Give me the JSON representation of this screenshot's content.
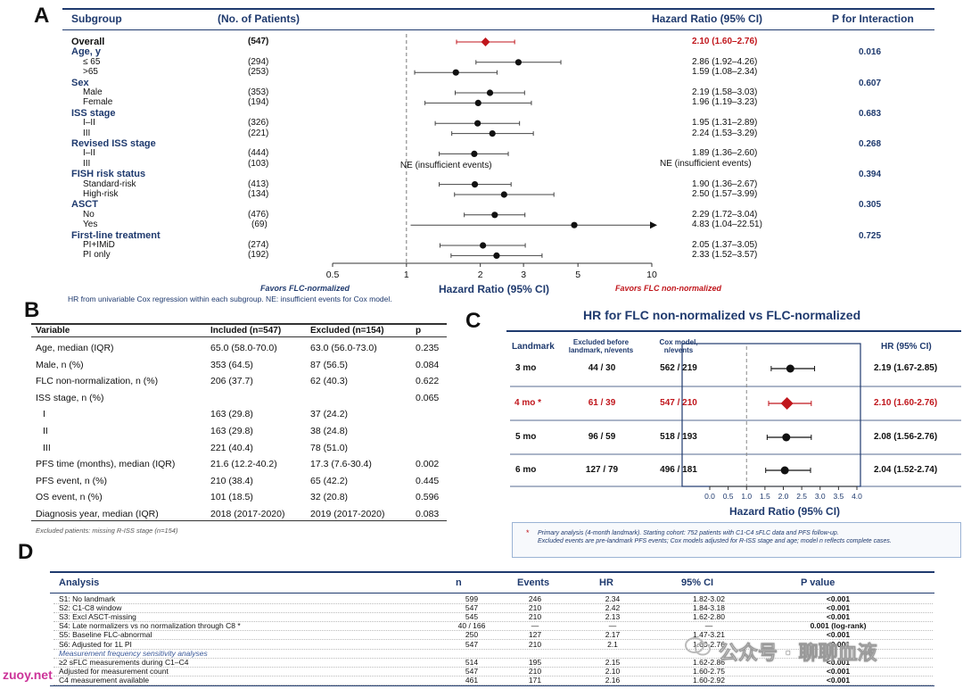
{
  "panelA": {
    "letter": "A",
    "headers": {
      "subgroup": "Subgroup",
      "n": "(No. of Patients)",
      "hr": "Hazard Ratio (95% CI)",
      "p": "P for Interaction"
    },
    "rows": [
      {
        "label": "Overall",
        "kind": "overall",
        "n": "(547)",
        "hr": 2.1,
        "lo": 1.6,
        "hi": 2.76,
        "text": "2.10 (1.60–2.76)"
      },
      {
        "label": "Age, y",
        "kind": "group",
        "p": "0.016"
      },
      {
        "label": "≤ 65",
        "kind": "sub",
        "n": "(294)",
        "hr": 2.86,
        "lo": 1.92,
        "hi": 4.26,
        "text": "2.86 (1.92–4.26)"
      },
      {
        "label": ">65",
        "kind": "sub",
        "n": "(253)",
        "hr": 1.59,
        "lo": 1.08,
        "hi": 2.34,
        "text": "1.59 (1.08–2.34)"
      },
      {
        "label": "Sex",
        "kind": "group",
        "p": "0.607"
      },
      {
        "label": "Male",
        "kind": "sub",
        "n": "(353)",
        "hr": 2.19,
        "lo": 1.58,
        "hi": 3.03,
        "text": "2.19 (1.58–3.03)"
      },
      {
        "label": "Female",
        "kind": "sub",
        "n": "(194)",
        "hr": 1.96,
        "lo": 1.19,
        "hi": 3.23,
        "text": "1.96 (1.19–3.23)"
      },
      {
        "label": "ISS stage",
        "kind": "group",
        "p": "0.683"
      },
      {
        "label": "I–II",
        "kind": "sub",
        "n": "(326)",
        "hr": 1.95,
        "lo": 1.31,
        "hi": 2.89,
        "text": "1.95 (1.31–2.89)"
      },
      {
        "label": "III",
        "kind": "sub",
        "n": "(221)",
        "hr": 2.24,
        "lo": 1.53,
        "hi": 3.29,
        "text": "2.24 (1.53–3.29)"
      },
      {
        "label": "Revised ISS stage",
        "kind": "group",
        "p": "0.268"
      },
      {
        "label": "I–II",
        "kind": "sub",
        "n": "(444)",
        "hr": 1.89,
        "lo": 1.36,
        "hi": 2.6,
        "text": "1.89 (1.36–2.60)"
      },
      {
        "label": "III",
        "kind": "sub",
        "n": "(103)",
        "na": "NE (insufficient events)",
        "text": "NE (insufficient events)"
      },
      {
        "label": "FISH risk status",
        "kind": "group",
        "p": "0.394"
      },
      {
        "label": "Standard-risk",
        "kind": "sub",
        "n": "(413)",
        "hr": 1.9,
        "lo": 1.36,
        "hi": 2.67,
        "text": "1.90 (1.36–2.67)"
      },
      {
        "label": "High-risk",
        "kind": "sub",
        "n": "(134)",
        "hr": 2.5,
        "lo": 1.57,
        "hi": 3.99,
        "text": "2.50 (1.57–3.99)"
      },
      {
        "label": "ASCT",
        "kind": "group",
        "p": "0.305"
      },
      {
        "label": "No",
        "kind": "sub",
        "n": "(476)",
        "hr": 2.29,
        "lo": 1.72,
        "hi": 3.04,
        "text": "2.29 (1.72–3.04)"
      },
      {
        "label": "Yes",
        "kind": "sub",
        "n": "(69)",
        "hr": 4.83,
        "lo": 1.04,
        "hi": 22.51,
        "text": "4.83 (1.04–22.51)"
      },
      {
        "label": "First-line treatment",
        "kind": "group",
        "p": "0.725"
      },
      {
        "label": "PI+IMiD",
        "kind": "sub",
        "n": "(274)",
        "hr": 2.05,
        "lo": 1.37,
        "hi": 3.05,
        "text": "2.05 (1.37–3.05)"
      },
      {
        "label": "PI only",
        "kind": "sub",
        "n": "(192)",
        "hr": 2.33,
        "lo": 1.52,
        "hi": 3.57,
        "text": "2.33 (1.52–3.57)"
      }
    ],
    "ticks": [
      "0.5",
      "1",
      "2",
      "3",
      "5",
      "10"
    ],
    "xlabel": "Hazard Ratio (95% CI)",
    "favors_left": "Favors FLC-normalized",
    "favors_right": "Favors FLC non-normalized",
    "footnote": "HR from univariable Cox regression within each subgroup. NE: insufficient events for Cox model."
  },
  "panelB": {
    "letter": "B",
    "headers": [
      "Variable",
      "Included (n=547)",
      "Excluded (n=154)",
      "p"
    ],
    "rows": [
      [
        "Age, median (IQR)",
        "65.0 (58.0-70.0)",
        "63.0 (56.0-73.0)",
        "0.235"
      ],
      [
        "Male, n (%)",
        "353 (64.5)",
        "87 (56.5)",
        "0.084"
      ],
      [
        "FLC non-normalization, n (%)",
        "206 (37.7)",
        "62 (40.3)",
        "0.622"
      ],
      [
        "ISS stage, n (%)",
        "",
        "",
        "0.065"
      ],
      [
        "I",
        "163 (29.8)",
        "37 (24.2)",
        ""
      ],
      [
        "II",
        "163 (29.8)",
        "38 (24.8)",
        ""
      ],
      [
        "III",
        "221 (40.4)",
        "78 (51.0)",
        ""
      ],
      [
        "PFS time (months), median (IQR)",
        "21.6 (12.2-40.2)",
        "17.3 (7.6-30.4)",
        "0.002"
      ],
      [
        "PFS event, n (%)",
        "210 (38.4)",
        "65 (42.2)",
        "0.445"
      ],
      [
        "OS event, n (%)",
        "101 (18.5)",
        "32 (20.8)",
        "0.596"
      ],
      [
        "Diagnosis year, median (IQR)",
        "2018 (2017-2020)",
        "2019 (2017-2020)",
        "0.083"
      ]
    ],
    "footnote": "Excluded patients: missing R-ISS stage (n=154)"
  },
  "panelC": {
    "letter": "C",
    "title": "HR for FLC non-normalized vs FLC-normalized",
    "headers": {
      "landmark": "Landmark",
      "excluded": "Excluded before landmark, n/events",
      "cox": "Cox model, n/events",
      "hr": "HR (95% CI)"
    },
    "rows": [
      {
        "landmark": "3 mo",
        "excluded": "44 / 30",
        "cox": "562 / 219",
        "hr": 2.19,
        "lo": 1.67,
        "hi": 2.85,
        "text": "2.19 (1.67-2.85)",
        "primary": false
      },
      {
        "landmark": "4 mo *",
        "excluded": "61 / 39",
        "cox": "547 / 210",
        "hr": 2.1,
        "lo": 1.6,
        "hi": 2.76,
        "text": "2.10 (1.60-2.76)",
        "primary": true
      },
      {
        "landmark": "5 mo",
        "excluded": "96 / 59",
        "cox": "518 / 193",
        "hr": 2.08,
        "lo": 1.56,
        "hi": 2.76,
        "text": "2.08 (1.56-2.76)",
        "primary": false
      },
      {
        "landmark": "6 mo",
        "excluded": "127 / 79",
        "cox": "496 / 181",
        "hr": 2.04,
        "lo": 1.52,
        "hi": 2.74,
        "text": "2.04 (1.52-2.74)",
        "primary": false
      }
    ],
    "ticks": [
      "0.0",
      "0.5",
      "1.0",
      "1.5",
      "2.0",
      "2.5",
      "3.0",
      "3.5",
      "4.0"
    ],
    "xlabel": "Hazard Ratio (95% CI)",
    "note_star": "*",
    "note_line1": "Primary analysis (4-month landmark). Starting cohort: 752 patients with C1-C4 sFLC data and PFS follow-up.",
    "note_line2": "Excluded events are pre-landmark PFS events; Cox models adjusted for R-ISS stage and age; model n reflects complete cases."
  },
  "panelD": {
    "letter": "D",
    "headers": [
      "Analysis",
      "n",
      "Events",
      "HR",
      "95% CI",
      "P value"
    ],
    "rows": [
      [
        "S1: No landmark",
        "599",
        "246",
        "2.34",
        "1.82-3.02",
        "<0.001"
      ],
      [
        "S2: C1-C8 window",
        "547",
        "210",
        "2.42",
        "1.84-3.18",
        "<0.001"
      ],
      [
        "S3: Excl ASCT-missing",
        "545",
        "210",
        "2.13",
        "1.62-2.80",
        "<0.001"
      ],
      [
        "S4: Late normalizers vs no normalization through C8 *",
        "40 / 166",
        "—",
        "—",
        "—",
        "0.001 (log-rank)"
      ],
      [
        "S5: Baseline FLC-abnormal",
        "250",
        "127",
        "2.17",
        "1.47-3.21",
        "<0.001"
      ],
      [
        "S6: Adjusted for 1L PI",
        "547",
        "210",
        "2.1",
        "1.60-2.76",
        "<0.001"
      ],
      [
        "Measurement frequency sensitivity analyses",
        "",
        "",
        "",
        "",
        ""
      ],
      [
        "≥2 sFLC measurements during C1–C4",
        "514",
        "195",
        "2.15",
        "1.62-2.86",
        "<0.001"
      ],
      [
        "Adjusted for measurement count",
        "547",
        "210",
        "2.10",
        "1.60-2.75",
        "<0.001"
      ],
      [
        "C4 measurement available",
        "461",
        "171",
        "2.16",
        "1.60-2.92",
        "<0.001"
      ]
    ]
  },
  "watermark": {
    "text": "公众号 · 聊聊血液",
    "site": "zuoy.net"
  },
  "colors": {
    "navy": "#1f3a6e",
    "red": "#c0161c",
    "black": "#111111"
  }
}
